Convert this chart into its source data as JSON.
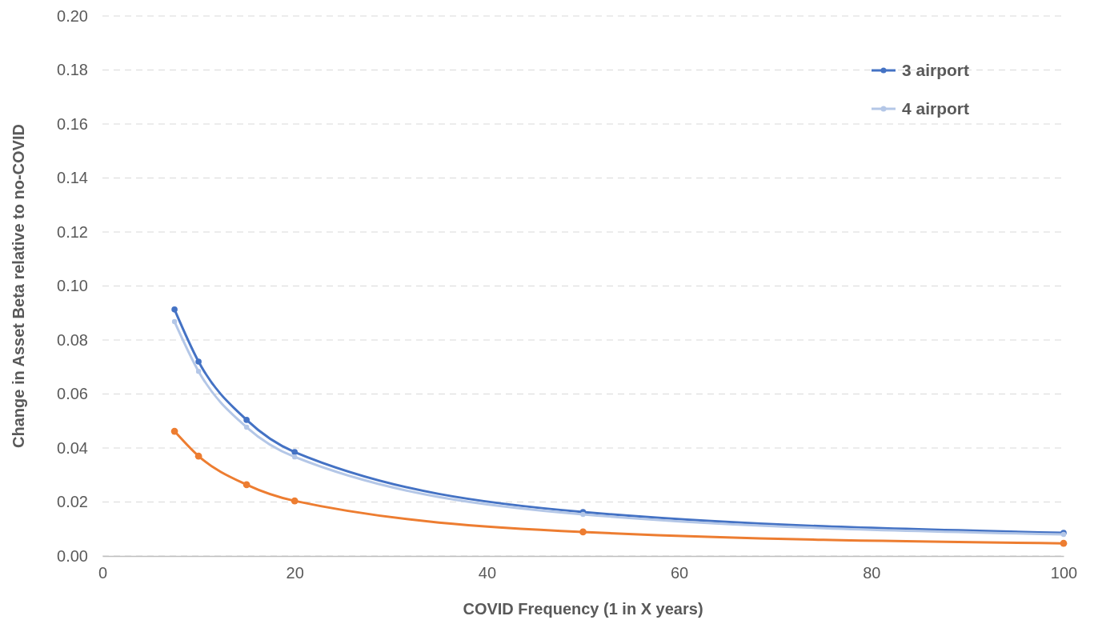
{
  "chart_data": {
    "type": "line",
    "xlabel": "COVID Frequency (1 in X years)",
    "ylabel": "Change in Asset Beta relative to no-COVID",
    "x": [
      7.5,
      10,
      15,
      20,
      50,
      100
    ],
    "series": [
      {
        "color": "#ed7d31",
        "values": [
          0.0462,
          0.037,
          0.0264,
          0.0204,
          0.0089,
          0.0047
        ]
      },
      {
        "name": "3 airport",
        "color": "#4472c4",
        "values": [
          0.0913,
          0.072,
          0.0504,
          0.0385,
          0.0163,
          0.0086
        ]
      },
      {
        "name": "4 airport",
        "color": "#b4c7e7",
        "values": [
          0.0868,
          0.0684,
          0.0477,
          0.0367,
          0.0154,
          0.008
        ]
      }
    ],
    "xlim": [
      0,
      100
    ],
    "xticks": [
      0,
      20,
      40,
      60,
      80,
      100
    ],
    "ylim": [
      0,
      0.2
    ],
    "yticks": [
      {
        "value": 0,
        "label": "0.00"
      },
      {
        "value": 0.02,
        "label": "0.02"
      },
      {
        "value": 0.04,
        "label": "0.04"
      },
      {
        "value": 0.06,
        "label": "0.06"
      },
      {
        "value": 0.08,
        "label": "0.08"
      },
      {
        "value": 0.1,
        "label": "0.10"
      },
      {
        "value": 0.12,
        "label": "0.12"
      },
      {
        "value": 0.14,
        "label": "0.14"
      },
      {
        "value": 0.16,
        "label": "0.16"
      },
      {
        "value": 0.18,
        "label": "0.18"
      },
      {
        "value": 0.2,
        "label": "0.20"
      }
    ],
    "grid": "y",
    "legend": "top right",
    "marker": "circle",
    "line_style": "solid"
  }
}
